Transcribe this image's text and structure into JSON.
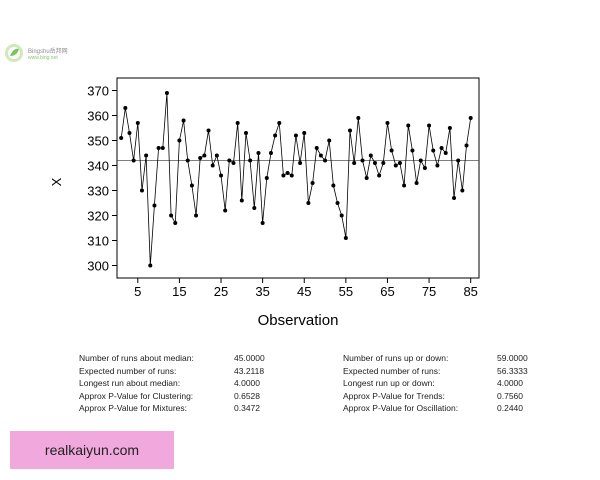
{
  "logo": {
    "name": "logo",
    "line1": "Bingshu岳邦网",
    "line2": "www.bing.net"
  },
  "watermark": {
    "text": "realkaiyun.com"
  },
  "chart_data": {
    "type": "line",
    "xlabel": "Observation",
    "ylabel": "X",
    "xlim": [
      0,
      87
    ],
    "ylim": [
      295,
      375
    ],
    "xticks": [
      5,
      15,
      25,
      35,
      45,
      55,
      65,
      75,
      85
    ],
    "yticks": [
      300,
      310,
      320,
      330,
      340,
      350,
      360,
      370
    ],
    "median": 342,
    "grid": false,
    "series": [
      {
        "values": [
          351,
          363,
          353,
          342,
          357,
          330,
          344,
          300,
          324,
          347,
          347,
          369,
          320,
          317,
          350,
          358,
          342,
          332,
          320,
          343,
          344,
          354,
          340,
          344,
          336,
          322,
          342,
          341,
          357,
          326,
          353,
          342,
          323,
          345,
          317,
          335,
          345,
          352,
          357,
          336,
          337,
          336,
          352,
          341,
          353,
          325,
          333,
          347,
          344,
          342,
          350,
          332,
          325,
          320,
          311,
          354,
          341,
          359,
          342,
          335,
          344,
          341,
          336,
          341,
          357,
          346,
          340,
          341,
          332,
          356,
          346,
          333,
          342,
          339,
          356,
          346,
          340,
          347,
          345,
          355,
          327,
          342,
          330,
          348,
          359
        ]
      }
    ]
  },
  "stats_left": [
    {
      "label": "Number of runs about median:",
      "value": "45.0000"
    },
    {
      "label": "Expected number of runs:",
      "value": "43.2118"
    },
    {
      "label": "Longest run about median:",
      "value": "4.0000"
    },
    {
      "label": "Approx P-Value for Clustering:",
      "value": "0.6528"
    },
    {
      "label": "Approx P-Value for Mixtures:",
      "value": "0.3472"
    }
  ],
  "stats_right": [
    {
      "label": "Number of runs up or down:",
      "value": "59.0000"
    },
    {
      "label": "Expected number of runs:",
      "value": "56.3333"
    },
    {
      "label": "Longest run up or down:",
      "value": "4.0000"
    },
    {
      "label": "Approx P-Value for Trends:",
      "value": "0.7560"
    },
    {
      "label": "Approx P-Value for Oscillation:",
      "value": "0.2440"
    }
  ]
}
